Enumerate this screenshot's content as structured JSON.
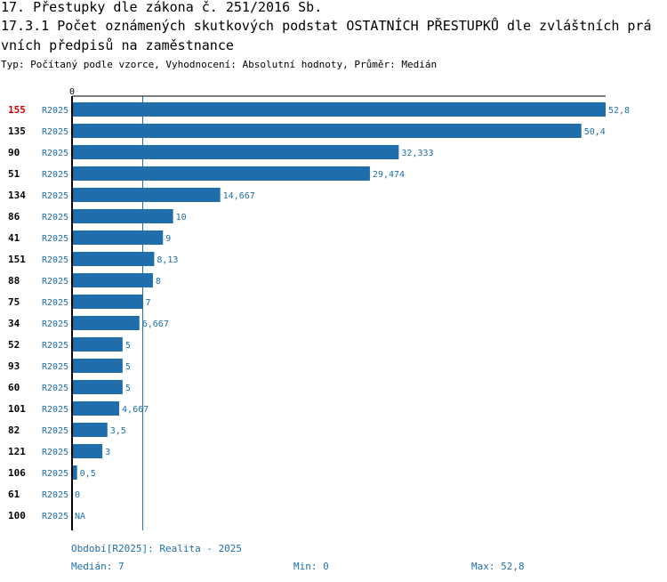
{
  "title": "17. Přestupky dle zákona č. 251/2016 Sb.",
  "subtitle_line1": "17.3.1 Počet oznámených skutkových podstat OSTATNÍCH PŘESTUPKŮ dle zvláštních prá",
  "subtitle_line2": "vních předpisů na zaměstnance",
  "info": "Typ: Počítaný podle vzorce, Vyhodnocení: Absolutní hodnoty, Průměr: Medián",
  "chart_data": {
    "type": "bar",
    "orientation": "horizontal",
    "axis_zero_label": "0",
    "series_tag": "R2025",
    "xlim": [
      0,
      52.8
    ],
    "median": 7,
    "highlight_color": "#d40000",
    "bar_color": "#1f6eab",
    "rows": [
      {
        "category": "155",
        "value": 52.8,
        "label": "52,8",
        "highlight": true
      },
      {
        "category": "135",
        "value": 50.4,
        "label": "50,4"
      },
      {
        "category": "90",
        "value": 32.333,
        "label": "32,333"
      },
      {
        "category": "51",
        "value": 29.474,
        "label": "29,474"
      },
      {
        "category": "134",
        "value": 14.667,
        "label": "14,667"
      },
      {
        "category": "86",
        "value": 10,
        "label": "10"
      },
      {
        "category": "41",
        "value": 9,
        "label": "9"
      },
      {
        "category": "151",
        "value": 8.13,
        "label": "8,13"
      },
      {
        "category": "88",
        "value": 8,
        "label": "8"
      },
      {
        "category": "75",
        "value": 7,
        "label": "7"
      },
      {
        "category": "34",
        "value": 6.667,
        "label": "6,667"
      },
      {
        "category": "52",
        "value": 5,
        "label": "5"
      },
      {
        "category": "93",
        "value": 5,
        "label": "5"
      },
      {
        "category": "60",
        "value": 5,
        "label": "5"
      },
      {
        "category": "101",
        "value": 4.667,
        "label": "4,667"
      },
      {
        "category": "82",
        "value": 3.5,
        "label": "3,5"
      },
      {
        "category": "121",
        "value": 3,
        "label": "3"
      },
      {
        "category": "106",
        "value": 0.5,
        "label": "0,5"
      },
      {
        "category": "61",
        "value": 0,
        "label": "0"
      },
      {
        "category": "100",
        "value": null,
        "label": "NA"
      }
    ]
  },
  "footer": {
    "period": "Období[R2025]: Realita - 2025",
    "median": "Medián: 7",
    "min": "Min: 0",
    "max": "Max: 52,8"
  }
}
